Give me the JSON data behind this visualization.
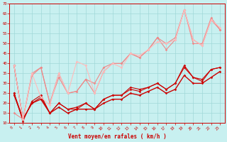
{
  "xlabel": "Vent moyen/en rafales ( km/h )",
  "xlim": [
    -0.5,
    23.5
  ],
  "ylim": [
    10,
    70
  ],
  "yticks": [
    10,
    15,
    20,
    25,
    30,
    35,
    40,
    45,
    50,
    55,
    60,
    65,
    70
  ],
  "xticks": [
    0,
    1,
    2,
    3,
    4,
    5,
    6,
    7,
    8,
    9,
    10,
    11,
    12,
    13,
    14,
    15,
    16,
    17,
    18,
    19,
    20,
    21,
    22,
    23
  ],
  "bg_color": "#c8f0f0",
  "grid_color": "#a0d8d8",
  "text_color": "#cc0000",
  "series": [
    {
      "x": [
        0,
        1
      ],
      "y": [
        39,
        12
      ],
      "color": "#cc0000",
      "lw": 0.8,
      "marker": "D",
      "ms": 1.8,
      "alpha": 1.0
    },
    {
      "x": [
        0,
        1,
        2,
        3,
        4,
        5,
        6,
        7,
        8,
        9,
        10,
        11,
        12,
        13,
        14,
        15,
        16,
        17,
        18,
        19,
        20,
        21,
        22,
        23
      ],
      "y": [
        25,
        11,
        21,
        24,
        15,
        20,
        17,
        18,
        20,
        17,
        22,
        24,
        24,
        28,
        27,
        28,
        30,
        27,
        30,
        39,
        33,
        32,
        37,
        38
      ],
      "color": "#cc0000",
      "lw": 0.8,
      "marker": "D",
      "ms": 1.8,
      "alpha": 1.0
    },
    {
      "x": [
        0,
        1,
        2,
        3,
        4,
        5,
        6,
        7,
        8,
        9,
        10,
        11,
        12,
        13,
        14,
        15,
        16,
        17,
        18,
        19,
        20,
        21,
        22,
        23
      ],
      "y": [
        25,
        12,
        20,
        22,
        15,
        18,
        15,
        17,
        17,
        17,
        20,
        22,
        22,
        25,
        24,
        26,
        28,
        25,
        27,
        34,
        30,
        30,
        33,
        36
      ],
      "color": "#cc0000",
      "lw": 1.0,
      "marker": "D",
      "ms": 1.8,
      "alpha": 1.0
    },
    {
      "x": [
        0,
        1,
        2,
        3,
        4,
        5,
        6,
        7,
        8,
        9,
        10,
        11,
        12,
        13,
        14,
        15,
        16,
        17,
        18,
        19,
        20,
        21,
        22,
        23
      ],
      "y": [
        24,
        12,
        20,
        23,
        15,
        20,
        17,
        17,
        20,
        17,
        22,
        24,
        24,
        27,
        26,
        28,
        30,
        27,
        30,
        38,
        33,
        31,
        37,
        38
      ],
      "color": "#cc0000",
      "lw": 0.8,
      "marker": "D",
      "ms": 1.8,
      "alpha": 1.0
    },
    {
      "x": [
        0,
        1,
        2,
        3,
        4,
        5,
        6,
        7,
        8,
        9,
        10,
        11,
        12,
        13,
        14,
        15,
        16,
        17,
        18,
        19,
        20,
        21,
        22,
        23
      ],
      "y": [
        39,
        12,
        35,
        38,
        20,
        35,
        25,
        26,
        32,
        25,
        36,
        40,
        40,
        45,
        43,
        47,
        53,
        50,
        53,
        67,
        52,
        49,
        62,
        57
      ],
      "color": "#ee8888",
      "lw": 0.8,
      "marker": "D",
      "ms": 1.8,
      "alpha": 1.0
    },
    {
      "x": [
        0,
        1,
        2,
        3,
        4,
        5,
        6,
        7,
        8,
        9,
        10,
        11,
        12,
        13,
        14,
        15,
        16,
        17,
        18,
        19,
        20,
        21,
        22,
        23
      ],
      "y": [
        15,
        12,
        34,
        38,
        20,
        33,
        25,
        26,
        32,
        30,
        38,
        40,
        40,
        45,
        43,
        47,
        53,
        47,
        52,
        67,
        50,
        50,
        63,
        57
      ],
      "color": "#ee8888",
      "lw": 0.8,
      "marker": "D",
      "ms": 1.8,
      "alpha": 1.0
    },
    {
      "x": [
        0,
        1,
        2,
        3,
        4,
        5,
        6,
        7,
        8,
        9,
        10,
        11,
        12,
        13,
        14,
        15,
        16,
        17,
        18,
        19,
        20,
        21,
        22,
        23
      ],
      "y": [
        39,
        12,
        35,
        23,
        19,
        35,
        25,
        41,
        39,
        25,
        36,
        40,
        38,
        45,
        44,
        47,
        51,
        50,
        52,
        67,
        52,
        49,
        62,
        58
      ],
      "color": "#ffbbbb",
      "lw": 0.8,
      "marker": "D",
      "ms": 1.8,
      "alpha": 1.0
    }
  ]
}
